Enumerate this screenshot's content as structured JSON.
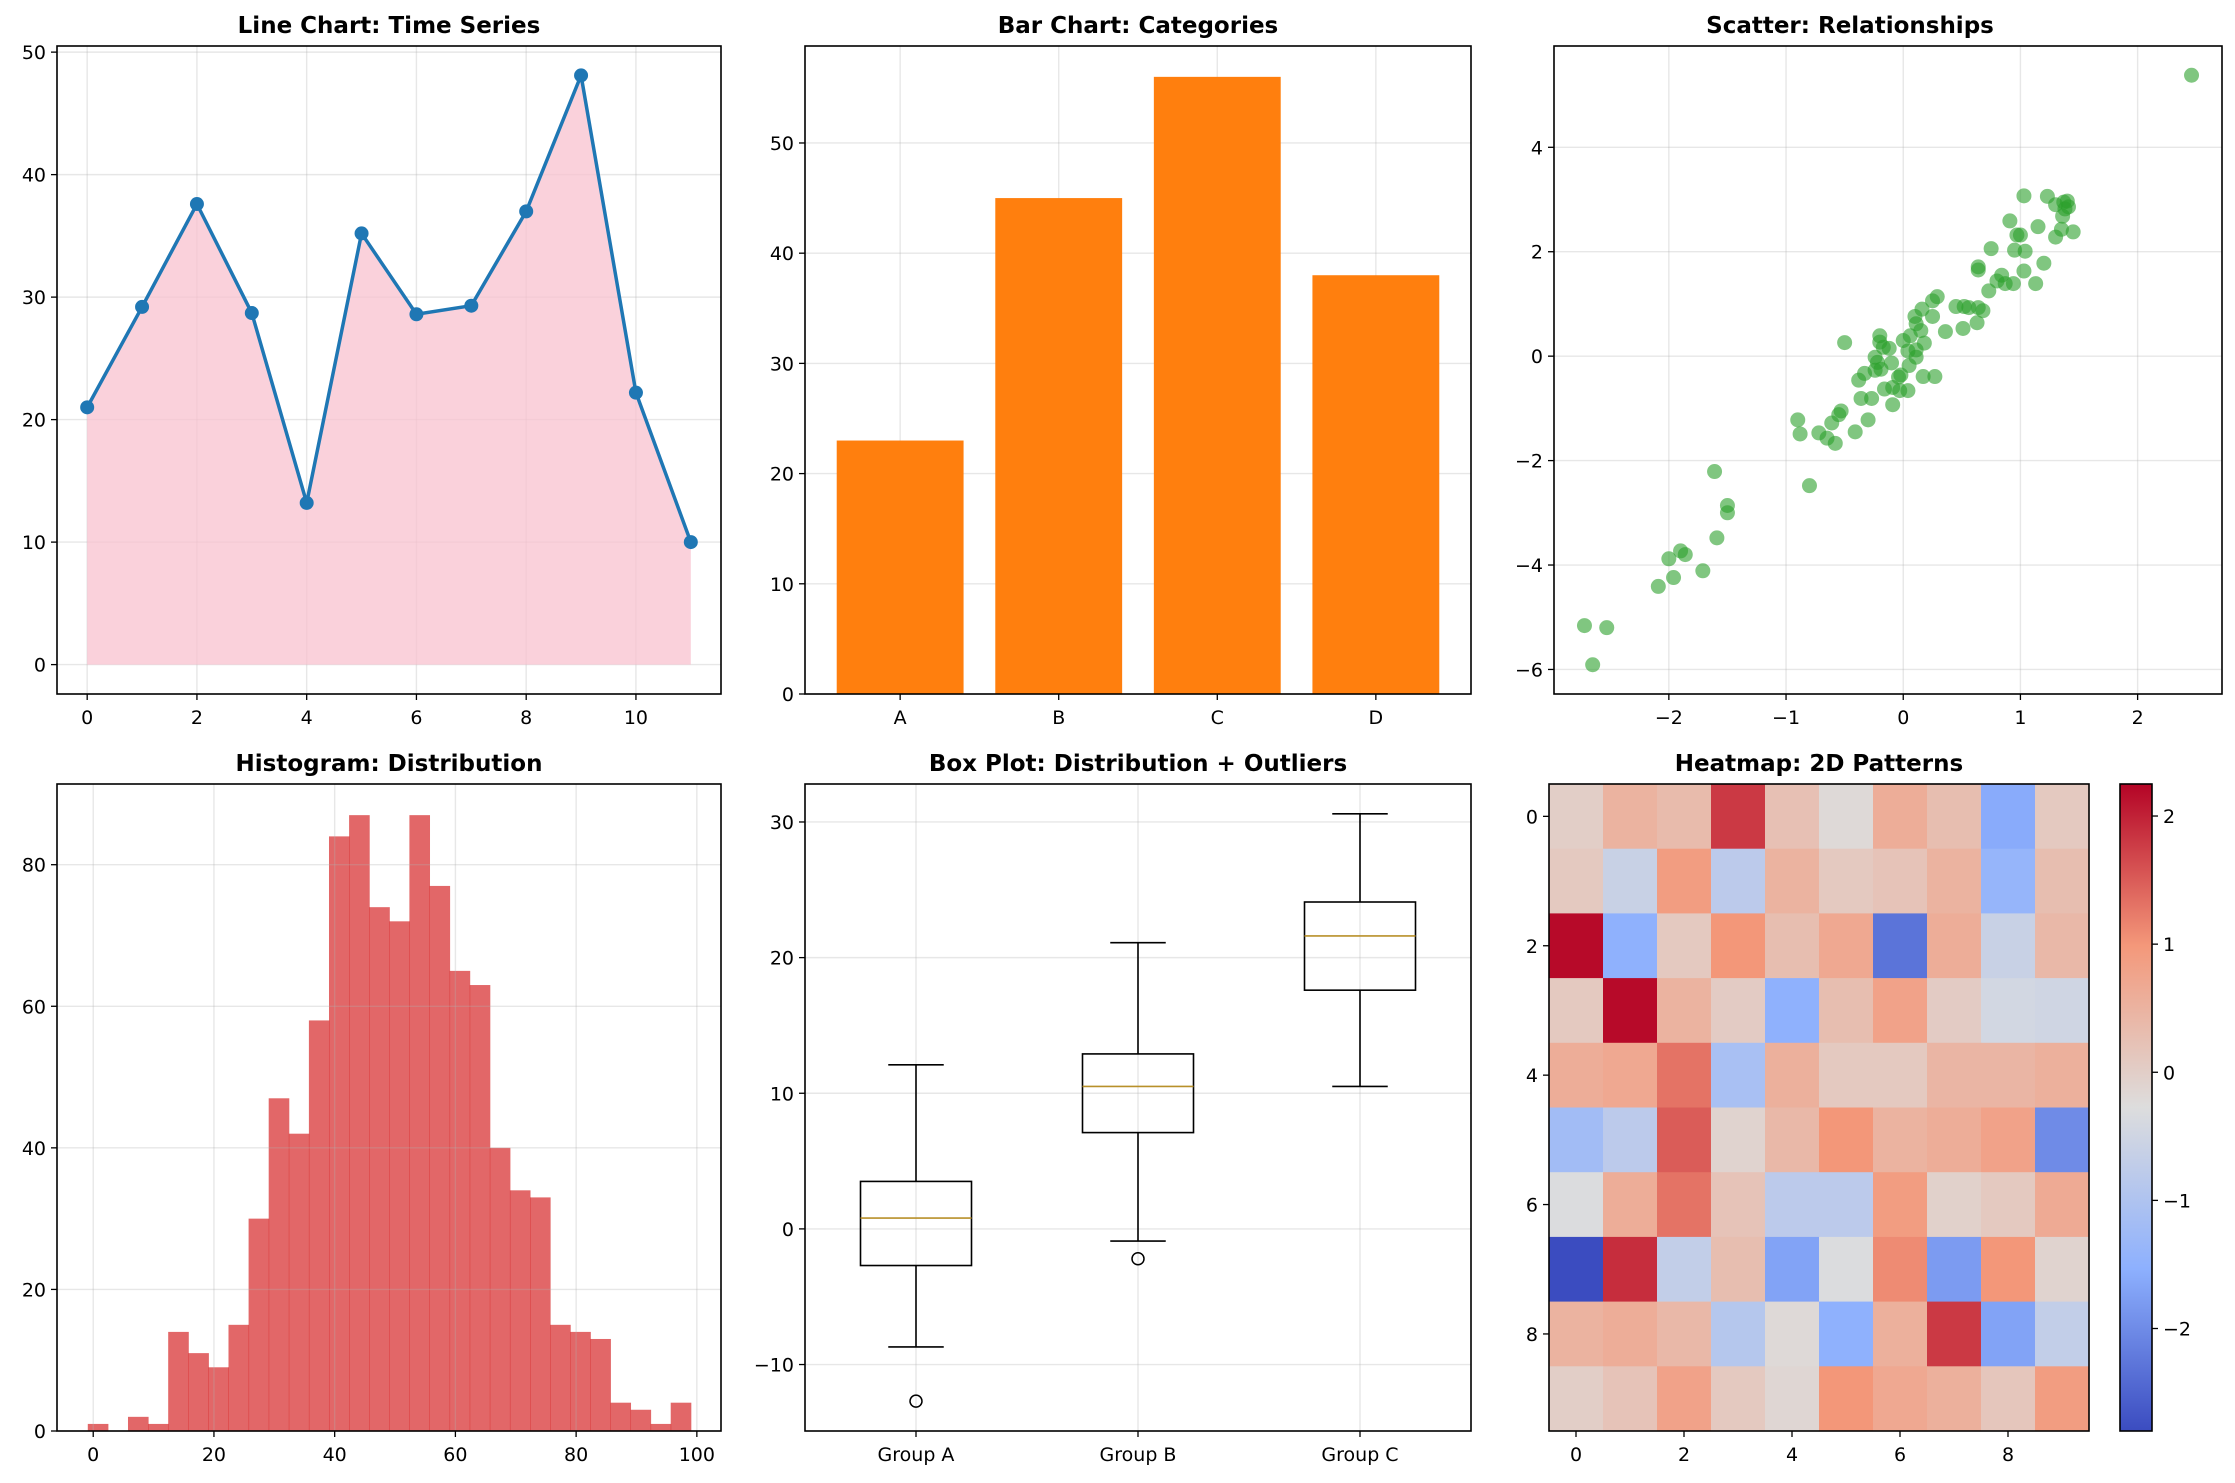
{
  "chart_data": [
    {
      "type": "line",
      "title": "Line Chart: Time Series",
      "x": [
        0,
        1,
        2,
        3,
        4,
        5,
        6,
        7,
        8,
        9,
        10,
        11
      ],
      "values": [
        21.0,
        29.2,
        37.6,
        28.7,
        13.2,
        35.2,
        28.6,
        29.3,
        37.0,
        48.1,
        22.2,
        10.0
      ],
      "fill_under": true,
      "line_color": "#1f77b4",
      "fill_color": "#f8c2cf",
      "xlim": [
        -0.55,
        11.55
      ],
      "ylim": [
        -2.4,
        50.5
      ],
      "xticks": [
        0,
        2,
        4,
        6,
        8,
        10
      ],
      "yticks": [
        0,
        10,
        20,
        30,
        40,
        50
      ],
      "grid": true
    },
    {
      "type": "bar",
      "title": "Bar Chart: Categories",
      "categories": [
        "A",
        "B",
        "C",
        "D"
      ],
      "values": [
        23,
        45,
        56,
        38
      ],
      "color": "#ff7f0e",
      "ylim": [
        0,
        58.8
      ],
      "yticks": [
        0,
        10,
        20,
        30,
        40,
        50
      ],
      "grid": true
    },
    {
      "type": "scatter",
      "title": "Scatter: Relationships",
      "color": "#2ca02c",
      "points": [
        [
          2.46,
          5.38
        ],
        [
          -2.72,
          -5.16
        ],
        [
          -2.53,
          -5.2
        ],
        [
          -2.65,
          -5.91
        ],
        [
          -2.09,
          -4.41
        ],
        [
          -2.0,
          -3.88
        ],
        [
          -1.96,
          -4.24
        ],
        [
          -1.9,
          -3.73
        ],
        [
          -1.86,
          -3.8
        ],
        [
          -1.71,
          -4.11
        ],
        [
          -1.61,
          -2.21
        ],
        [
          -1.59,
          -3.48
        ],
        [
          -1.5,
          -2.86
        ],
        [
          -1.5,
          -3.0
        ],
        [
          -0.8,
          -2.48
        ],
        [
          -0.9,
          -1.22
        ],
        [
          -0.88,
          -1.49
        ],
        [
          -0.72,
          -1.47
        ],
        [
          -0.65,
          -1.57
        ],
        [
          -0.58,
          -1.67
        ],
        [
          -0.61,
          -1.28
        ],
        [
          -0.55,
          -1.12
        ],
        [
          -0.53,
          -1.05
        ],
        [
          -0.41,
          -1.45
        ],
        [
          -0.3,
          -1.22
        ],
        [
          -0.5,
          0.26
        ],
        [
          -0.38,
          -0.46
        ],
        [
          -0.33,
          -0.33
        ],
        [
          -0.36,
          -0.81
        ],
        [
          -0.27,
          -0.81
        ],
        [
          -0.09,
          -0.93
        ],
        [
          -0.2,
          0.39
        ],
        [
          -0.2,
          0.27
        ],
        [
          -0.17,
          0.17
        ],
        [
          -0.12,
          0.15
        ],
        [
          -0.24,
          -0.02
        ],
        [
          -0.22,
          -0.12
        ],
        [
          -0.24,
          -0.27
        ],
        [
          -0.19,
          -0.25
        ],
        [
          -0.1,
          -0.13
        ],
        [
          -0.16,
          -0.63
        ],
        [
          -0.09,
          -0.6
        ],
        [
          -0.04,
          -0.4
        ],
        [
          -0.02,
          -0.36
        ],
        [
          -0.03,
          -0.66
        ],
        [
          0.04,
          -0.66
        ],
        [
          0.0,
          0.3
        ],
        [
          0.06,
          0.39
        ],
        [
          0.04,
          0.1
        ],
        [
          0.11,
          0.12
        ],
        [
          0.11,
          -0.02
        ],
        [
          0.05,
          -0.18
        ],
        [
          0.1,
          0.76
        ],
        [
          0.11,
          0.62
        ],
        [
          0.15,
          0.49
        ],
        [
          0.16,
          0.9
        ],
        [
          0.18,
          0.25
        ],
        [
          0.17,
          -0.39
        ],
        [
          0.27,
          -0.39
        ],
        [
          0.25,
          0.76
        ],
        [
          0.25,
          1.06
        ],
        [
          0.29,
          1.14
        ],
        [
          0.36,
          0.47
        ],
        [
          0.45,
          0.95
        ],
        [
          0.51,
          0.53
        ],
        [
          0.52,
          0.95
        ],
        [
          0.56,
          0.93
        ],
        [
          0.63,
          0.64
        ],
        [
          0.64,
          0.93
        ],
        [
          0.68,
          0.87
        ],
        [
          0.64,
          1.71
        ],
        [
          0.64,
          1.65
        ],
        [
          0.73,
          1.25
        ],
        [
          0.75,
          2.06
        ],
        [
          0.8,
          1.44
        ],
        [
          0.84,
          1.55
        ],
        [
          0.87,
          1.39
        ],
        [
          0.94,
          1.39
        ],
        [
          0.91,
          2.59
        ],
        [
          0.95,
          2.03
        ],
        [
          0.97,
          2.32
        ],
        [
          1.0,
          2.32
        ],
        [
          1.04,
          2.01
        ],
        [
          1.03,
          1.63
        ],
        [
          1.03,
          3.07
        ],
        [
          1.13,
          1.39
        ],
        [
          1.15,
          2.48
        ],
        [
          1.2,
          1.78
        ],
        [
          1.23,
          3.06
        ],
        [
          1.3,
          2.9
        ],
        [
          1.3,
          2.28
        ],
        [
          1.35,
          2.43
        ],
        [
          1.36,
          2.68
        ],
        [
          1.37,
          2.95
        ],
        [
          1.38,
          2.82
        ],
        [
          1.4,
          2.97
        ],
        [
          1.41,
          2.86
        ],
        [
          1.45,
          2.38
        ]
      ],
      "xlim": [
        -2.98,
        2.72
      ],
      "ylim": [
        -6.47,
        5.94
      ],
      "xticks": [
        -2,
        -1,
        0,
        1,
        2
      ],
      "yticks": [
        -6,
        -4,
        -2,
        0,
        2,
        4
      ],
      "grid": true
    },
    {
      "type": "bar",
      "subtype": "histogram",
      "title": "Histogram: Distribution",
      "color": "#d62728",
      "bin_start": -0.9,
      "bin_width": 3.33,
      "counts": [
        1,
        0,
        2,
        1,
        14,
        11,
        9,
        15,
        30,
        47,
        42,
        58,
        84,
        87,
        74,
        72,
        87,
        77,
        65,
        63,
        40,
        34,
        33,
        15,
        14,
        13,
        4,
        3,
        1,
        4
      ],
      "xlim": [
        -6,
        104
      ],
      "ylim": [
        0,
        91.4
      ],
      "xticks": [
        0,
        20,
        40,
        60,
        80,
        100
      ],
      "yticks": [
        0,
        20,
        40,
        60,
        80
      ],
      "grid": true
    },
    {
      "type": "box",
      "title": "Box Plot: Distribution + Outliers",
      "categories": [
        "Group A",
        "Group B",
        "Group C"
      ],
      "boxes": [
        {
          "whislo": -8.7,
          "q1": -2.7,
          "median": 0.8,
          "q3": 3.5,
          "whishi": 12.1,
          "fliers": [
            -12.7
          ]
        },
        {
          "whislo": -0.9,
          "q1": 7.1,
          "median": 10.5,
          "q3": 12.9,
          "whishi": 21.1,
          "fliers": [
            -2.2
          ]
        },
        {
          "whislo": 10.5,
          "q1": 17.6,
          "median": 21.6,
          "q3": 24.1,
          "whishi": 30.6,
          "fliers": []
        }
      ],
      "median_color": "#b8902a",
      "ylim": [
        -14.9,
        32.8
      ],
      "yticks": [
        -10,
        0,
        10,
        20,
        30
      ],
      "grid": true
    },
    {
      "type": "heatmap",
      "title": "Heatmap: 2D Patterns",
      "colormap": "coolwarm",
      "values": [
        [
          0.0,
          0.5,
          0.35,
          1.8,
          0.25,
          -0.2,
          0.6,
          0.3,
          -1.6,
          0.1
        ],
        [
          0.1,
          -0.6,
          0.9,
          -0.8,
          0.5,
          0.1,
          0.2,
          0.5,
          -1.4,
          0.3
        ],
        [
          2.2,
          -1.5,
          0.1,
          1.0,
          0.3,
          0.7,
          -2.3,
          0.6,
          -0.6,
          0.4
        ],
        [
          0.1,
          2.2,
          0.5,
          0.05,
          -1.5,
          0.3,
          0.8,
          0.05,
          -0.45,
          -0.5
        ],
        [
          0.6,
          0.7,
          1.3,
          -1.1,
          0.55,
          0.1,
          0.1,
          0.45,
          0.45,
          0.55
        ],
        [
          -1.2,
          -0.8,
          1.5,
          -0.1,
          0.4,
          1.0,
          0.5,
          0.6,
          0.8,
          -2.0
        ],
        [
          -0.3,
          0.6,
          1.3,
          0.2,
          -0.8,
          -0.8,
          0.9,
          -0.05,
          0.1,
          0.65
        ],
        [
          -2.8,
          1.9,
          -0.7,
          0.3,
          -1.7,
          -0.3,
          1.1,
          -1.8,
          1.0,
          -0.1
        ],
        [
          0.5,
          0.6,
          0.4,
          -0.9,
          -0.2,
          -1.5,
          0.55,
          1.8,
          -1.7,
          -0.7
        ],
        [
          0.0,
          0.2,
          0.8,
          0.1,
          -0.15,
          1.0,
          0.7,
          0.55,
          0.15,
          0.9
        ]
      ],
      "vmin": -2.8,
      "vmax": 2.25,
      "xticks": [
        0,
        2,
        4,
        6,
        8
      ],
      "yticks": [
        0,
        2,
        4,
        6,
        8
      ],
      "colorbar_ticks": [
        -2,
        -1,
        0,
        1,
        2
      ]
    }
  ]
}
